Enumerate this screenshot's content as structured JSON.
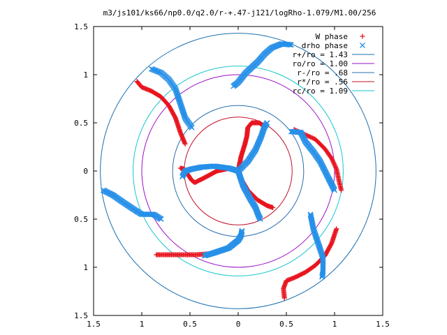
{
  "chart_data": {
    "type": "scatter",
    "title": "m3/js101/ks66/np0.0/q2.0/r-+.47-j121/logRho-1.079/M1.00/256",
    "xlim": [
      -1.5,
      1.5
    ],
    "ylim": [
      -1.5,
      1.5
    ],
    "x_ticks": [
      "1.5",
      "1",
      "0.5",
      "0",
      "0.5",
      "1",
      "1.5"
    ],
    "y_ticks": [
      "1.5",
      "1",
      "0.5",
      "0",
      "0.5",
      "1",
      "1.5"
    ],
    "grid": false,
    "legend_position": "top-right",
    "circles": [
      {
        "label": "r+/ro = 1.43",
        "radius": 1.43,
        "color": "#1a6fb0"
      },
      {
        "label": "ro/ro = 1.00",
        "radius": 1.0,
        "color": "#9b0fc9"
      },
      {
        "label": "r-/ro = .68",
        "radius": 0.68,
        "color": "#2a6fb0"
      },
      {
        "label": "r*/ro = .56",
        "radius": 0.56,
        "color": "#c0102a"
      },
      {
        "label": "rc/ro = 1.09",
        "radius": 1.09,
        "color": "#19c6cf"
      }
    ],
    "series": [
      {
        "name": "W phase",
        "marker": "plus",
        "color": "#e8141e",
        "arms": [
          [
            [
              0,
              0
            ],
            [
              0.03,
              0.15
            ],
            [
              0.07,
              0.28
            ],
            [
              0.09,
              0.36
            ],
            [
              0.1,
              0.45
            ],
            [
              0.14,
              0.5
            ],
            [
              0.22,
              0.5
            ],
            [
              0.27,
              0.46
            ]
          ],
          [
            [
              0,
              0
            ],
            [
              -0.08,
              0.03
            ],
            [
              -0.22,
              0.0
            ],
            [
              -0.35,
              -0.07
            ],
            [
              -0.45,
              -0.12
            ],
            [
              -0.48,
              -0.1
            ],
            [
              -0.56,
              0.02
            ],
            [
              -0.6,
              0.03
            ]
          ],
          [
            [
              0,
              0
            ],
            [
              0.03,
              -0.08
            ],
            [
              0.1,
              -0.2
            ],
            [
              0.2,
              -0.3
            ],
            [
              0.3,
              -0.36
            ],
            [
              0.36,
              -0.38
            ]
          ],
          [
            [
              -0.55,
              0.28
            ],
            [
              -0.6,
              0.4
            ],
            [
              -0.65,
              0.55
            ],
            [
              -0.72,
              0.68
            ],
            [
              -0.8,
              0.77
            ],
            [
              -0.9,
              0.83
            ],
            [
              -1.0,
              0.87
            ],
            [
              -1.05,
              0.93
            ]
          ],
          [
            [
              0.58,
              0.43
            ],
            [
              0.8,
              0.33
            ],
            [
              0.9,
              0.23
            ],
            [
              0.97,
              0.13
            ],
            [
              1.02,
              0.02
            ],
            [
              1.05,
              -0.12
            ],
            [
              1.07,
              -0.2
            ]
          ],
          [
            [
              0.48,
              -1.32
            ],
            [
              0.47,
              -1.22
            ],
            [
              0.5,
              -1.14
            ],
            [
              0.6,
              -1.1
            ],
            [
              0.7,
              -1.05
            ],
            [
              0.8,
              -0.98
            ],
            [
              0.9,
              -0.88
            ],
            [
              0.97,
              -0.75
            ],
            [
              1.02,
              -0.6
            ]
          ],
          [
            [
              -0.85,
              -0.87
            ],
            [
              -0.75,
              -0.87
            ],
            [
              -0.6,
              -0.87
            ],
            [
              -0.45,
              -0.87
            ],
            [
              -0.3,
              -0.86
            ]
          ]
        ]
      },
      {
        "name": "drho phase",
        "marker": "x",
        "color": "#2790e8",
        "arms": [
          [
            [
              0,
              0
            ],
            [
              -0.1,
              0.03
            ],
            [
              -0.25,
              0.05
            ],
            [
              -0.38,
              0.04
            ],
            [
              -0.48,
              0.02
            ],
            [
              -0.55,
              0.0
            ],
            [
              -0.58,
              -0.06
            ]
          ],
          [
            [
              0,
              0
            ],
            [
              0.1,
              0.1
            ],
            [
              0.18,
              0.22
            ],
            [
              0.24,
              0.36
            ],
            [
              0.27,
              0.45
            ],
            [
              0.3,
              0.5
            ]
          ],
          [
            [
              0,
              0
            ],
            [
              0.05,
              -0.15
            ],
            [
              0.12,
              -0.28
            ],
            [
              0.18,
              -0.38
            ],
            [
              0.21,
              -0.46
            ],
            [
              0.23,
              -0.5
            ]
          ],
          [
            [
              -1.4,
              -0.2
            ],
            [
              -1.3,
              -0.25
            ],
            [
              -1.2,
              -0.32
            ],
            [
              -1.08,
              -0.4
            ],
            [
              -1.0,
              -0.45
            ],
            [
              -0.88,
              -0.45
            ],
            [
              -0.8,
              -0.5
            ]
          ],
          [
            [
              -0.35,
              -0.88
            ],
            [
              -0.25,
              -0.85
            ],
            [
              -0.1,
              -0.8
            ],
            [
              0.0,
              -0.72
            ],
            [
              0.03,
              -0.67
            ],
            [
              0.04,
              -0.62
            ]
          ],
          [
            [
              -0.48,
              0.45
            ],
            [
              -0.55,
              0.55
            ],
            [
              -0.6,
              0.7
            ],
            [
              -0.65,
              0.85
            ],
            [
              -0.72,
              0.95
            ],
            [
              -0.8,
              1.02
            ],
            [
              -0.9,
              1.06
            ]
          ],
          [
            [
              -0.05,
              0.88
            ],
            [
              0.0,
              0.92
            ],
            [
              0.08,
              1.02
            ],
            [
              0.2,
              1.13
            ],
            [
              0.28,
              1.22
            ],
            [
              0.35,
              1.28
            ],
            [
              0.45,
              1.32
            ],
            [
              0.55,
              1.31
            ]
          ],
          [
            [
              0.55,
              0.41
            ],
            [
              0.65,
              0.4
            ],
            [
              0.7,
              0.3
            ],
            [
              0.78,
              0.2
            ],
            [
              0.85,
              0.1
            ],
            [
              0.9,
              0.0
            ],
            [
              0.95,
              -0.1
            ],
            [
              1.0,
              -0.2
            ]
          ],
          [
            [
              0.75,
              -0.45
            ],
            [
              0.78,
              -0.6
            ],
            [
              0.83,
              -0.75
            ],
            [
              0.88,
              -0.9
            ],
            [
              0.88,
              -1.05
            ],
            [
              0.87,
              -1.1
            ]
          ]
        ]
      }
    ]
  }
}
